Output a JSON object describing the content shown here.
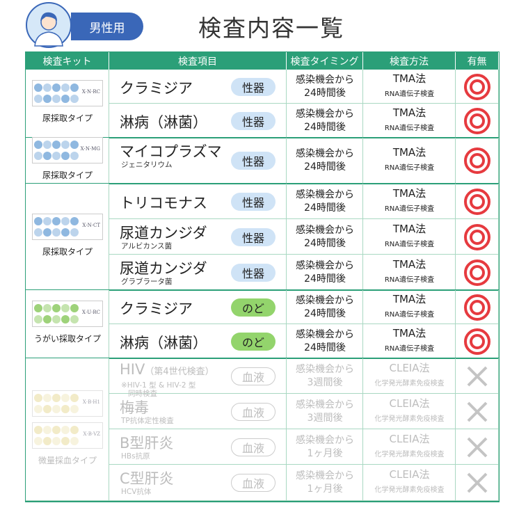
{
  "header": {
    "badge": "男性用",
    "title": "検査内容一覧"
  },
  "table": {
    "columns": [
      "検査キット",
      "検査項目",
      "検査タイミング",
      "検査方法",
      "有無"
    ],
    "groups": [
      {
        "kit": {
          "label": "尿採取タイプ",
          "codes": [
            "X·N·RC"
          ],
          "color": "#8fb8e0"
        },
        "rows": [
          {
            "name": "クラミジア",
            "tag": "性器",
            "tag_color": "#cfe3f6",
            "timing": [
              "感染機会から",
              "24時間後"
            ],
            "method": "TMA法",
            "method_note": "RNA遺伝子検査",
            "available": true
          },
          {
            "name": "淋病（淋菌）",
            "tag": "性器",
            "tag_color": "#cfe3f6",
            "timing": [
              "感染機会から",
              "24時間後"
            ],
            "method": "TMA法",
            "method_note": "RNA遺伝子検査",
            "available": true
          }
        ]
      },
      {
        "kit": {
          "label": "尿採取タイプ",
          "codes": [
            "X·N·MG"
          ],
          "color": "#8fb8e0"
        },
        "rows": [
          {
            "name": "マイコプラズマ",
            "sub": "ジェニタリウム",
            "tag": "性器",
            "tag_color": "#cfe3f6",
            "timing": [
              "感染機会から",
              "24時間後"
            ],
            "method": "TMA法",
            "method_note": "RNA遺伝子検査",
            "available": true
          }
        ]
      },
      {
        "kit": {
          "label": "尿採取タイプ",
          "codes": [
            "X·N·CT"
          ],
          "color": "#8fb8e0"
        },
        "rows": [
          {
            "name": "トリコモナス",
            "tag": "性器",
            "tag_color": "#cfe3f6",
            "timing": [
              "感染機会から",
              "24時間後"
            ],
            "method": "TMA法",
            "method_note": "RNA遺伝子検査",
            "available": true
          },
          {
            "name": "尿道カンジダ",
            "sub": "アルビカンス菌",
            "tag": "性器",
            "tag_color": "#cfe3f6",
            "timing": [
              "感染機会から",
              "24時間後"
            ],
            "method": "TMA法",
            "method_note": "RNA遺伝子検査",
            "available": true
          },
          {
            "name": "尿道カンジダ",
            "sub": "グラブラータ菌",
            "tag": "性器",
            "tag_color": "#cfe3f6",
            "timing": [
              "感染機会から",
              "24時間後"
            ],
            "method": "TMA法",
            "method_note": "RNA遺伝子検査",
            "available": true
          }
        ]
      },
      {
        "kit": {
          "label": "うがい採取タイプ",
          "codes": [
            "X·U·RC"
          ],
          "color": "#9ed27a"
        },
        "rows": [
          {
            "name": "クラミジア",
            "tag": "のど",
            "tag_color": "#93d46c",
            "timing": [
              "感染機会から",
              "24時間後"
            ],
            "method": "TMA法",
            "method_note": "RNA遺伝子検査",
            "available": true
          },
          {
            "name": "淋病（淋菌）",
            "tag": "のど",
            "tag_color": "#93d46c",
            "timing": [
              "感染機会から",
              "24時間後"
            ],
            "method": "TMA法",
            "method_note": "RNA遺伝子検査",
            "available": true
          }
        ]
      },
      {
        "kit": {
          "label": "微量採血タイプ",
          "codes": [
            "X·B·H1",
            "X·B·VZ"
          ],
          "color": "#e8dc9c"
        },
        "rows": [
          {
            "name": "HIV",
            "name_note": "（第4世代検査）",
            "sub": [
              "※HIV-1 型 & HIV-2 型",
              "同時検査"
            ],
            "tag": "血液",
            "tag_color": "#ffffff",
            "timing": [
              "感染機会から",
              "3週間後"
            ],
            "method": "CLEIA法",
            "method_note": "化学発光酵素免疫検査",
            "available": false
          },
          {
            "name": "梅毒",
            "sub": "TP抗体定性検査",
            "tag": "血液",
            "tag_color": "#ffffff",
            "timing": [
              "感染機会から",
              "3週間後"
            ],
            "method": "CLEIA法",
            "method_note": "化学発光酵素免疫検査",
            "available": false
          },
          {
            "name": "B型肝炎",
            "sub": "HBs抗原",
            "tag": "血液",
            "tag_color": "#ffffff",
            "timing": [
              "感染機会から",
              "1ヶ月後"
            ],
            "method": "CLEIA法",
            "method_note": "化学発光酵素免疫検査",
            "available": false
          },
          {
            "name": "C型肝炎",
            "sub": "HCV抗体",
            "tag": "血液",
            "tag_color": "#ffffff",
            "timing": [
              "感染機会から",
              "1ヶ月後"
            ],
            "method": "CLEIA法",
            "method_note": "化学発光酵素免疫検査",
            "available": false
          }
        ]
      }
    ]
  }
}
